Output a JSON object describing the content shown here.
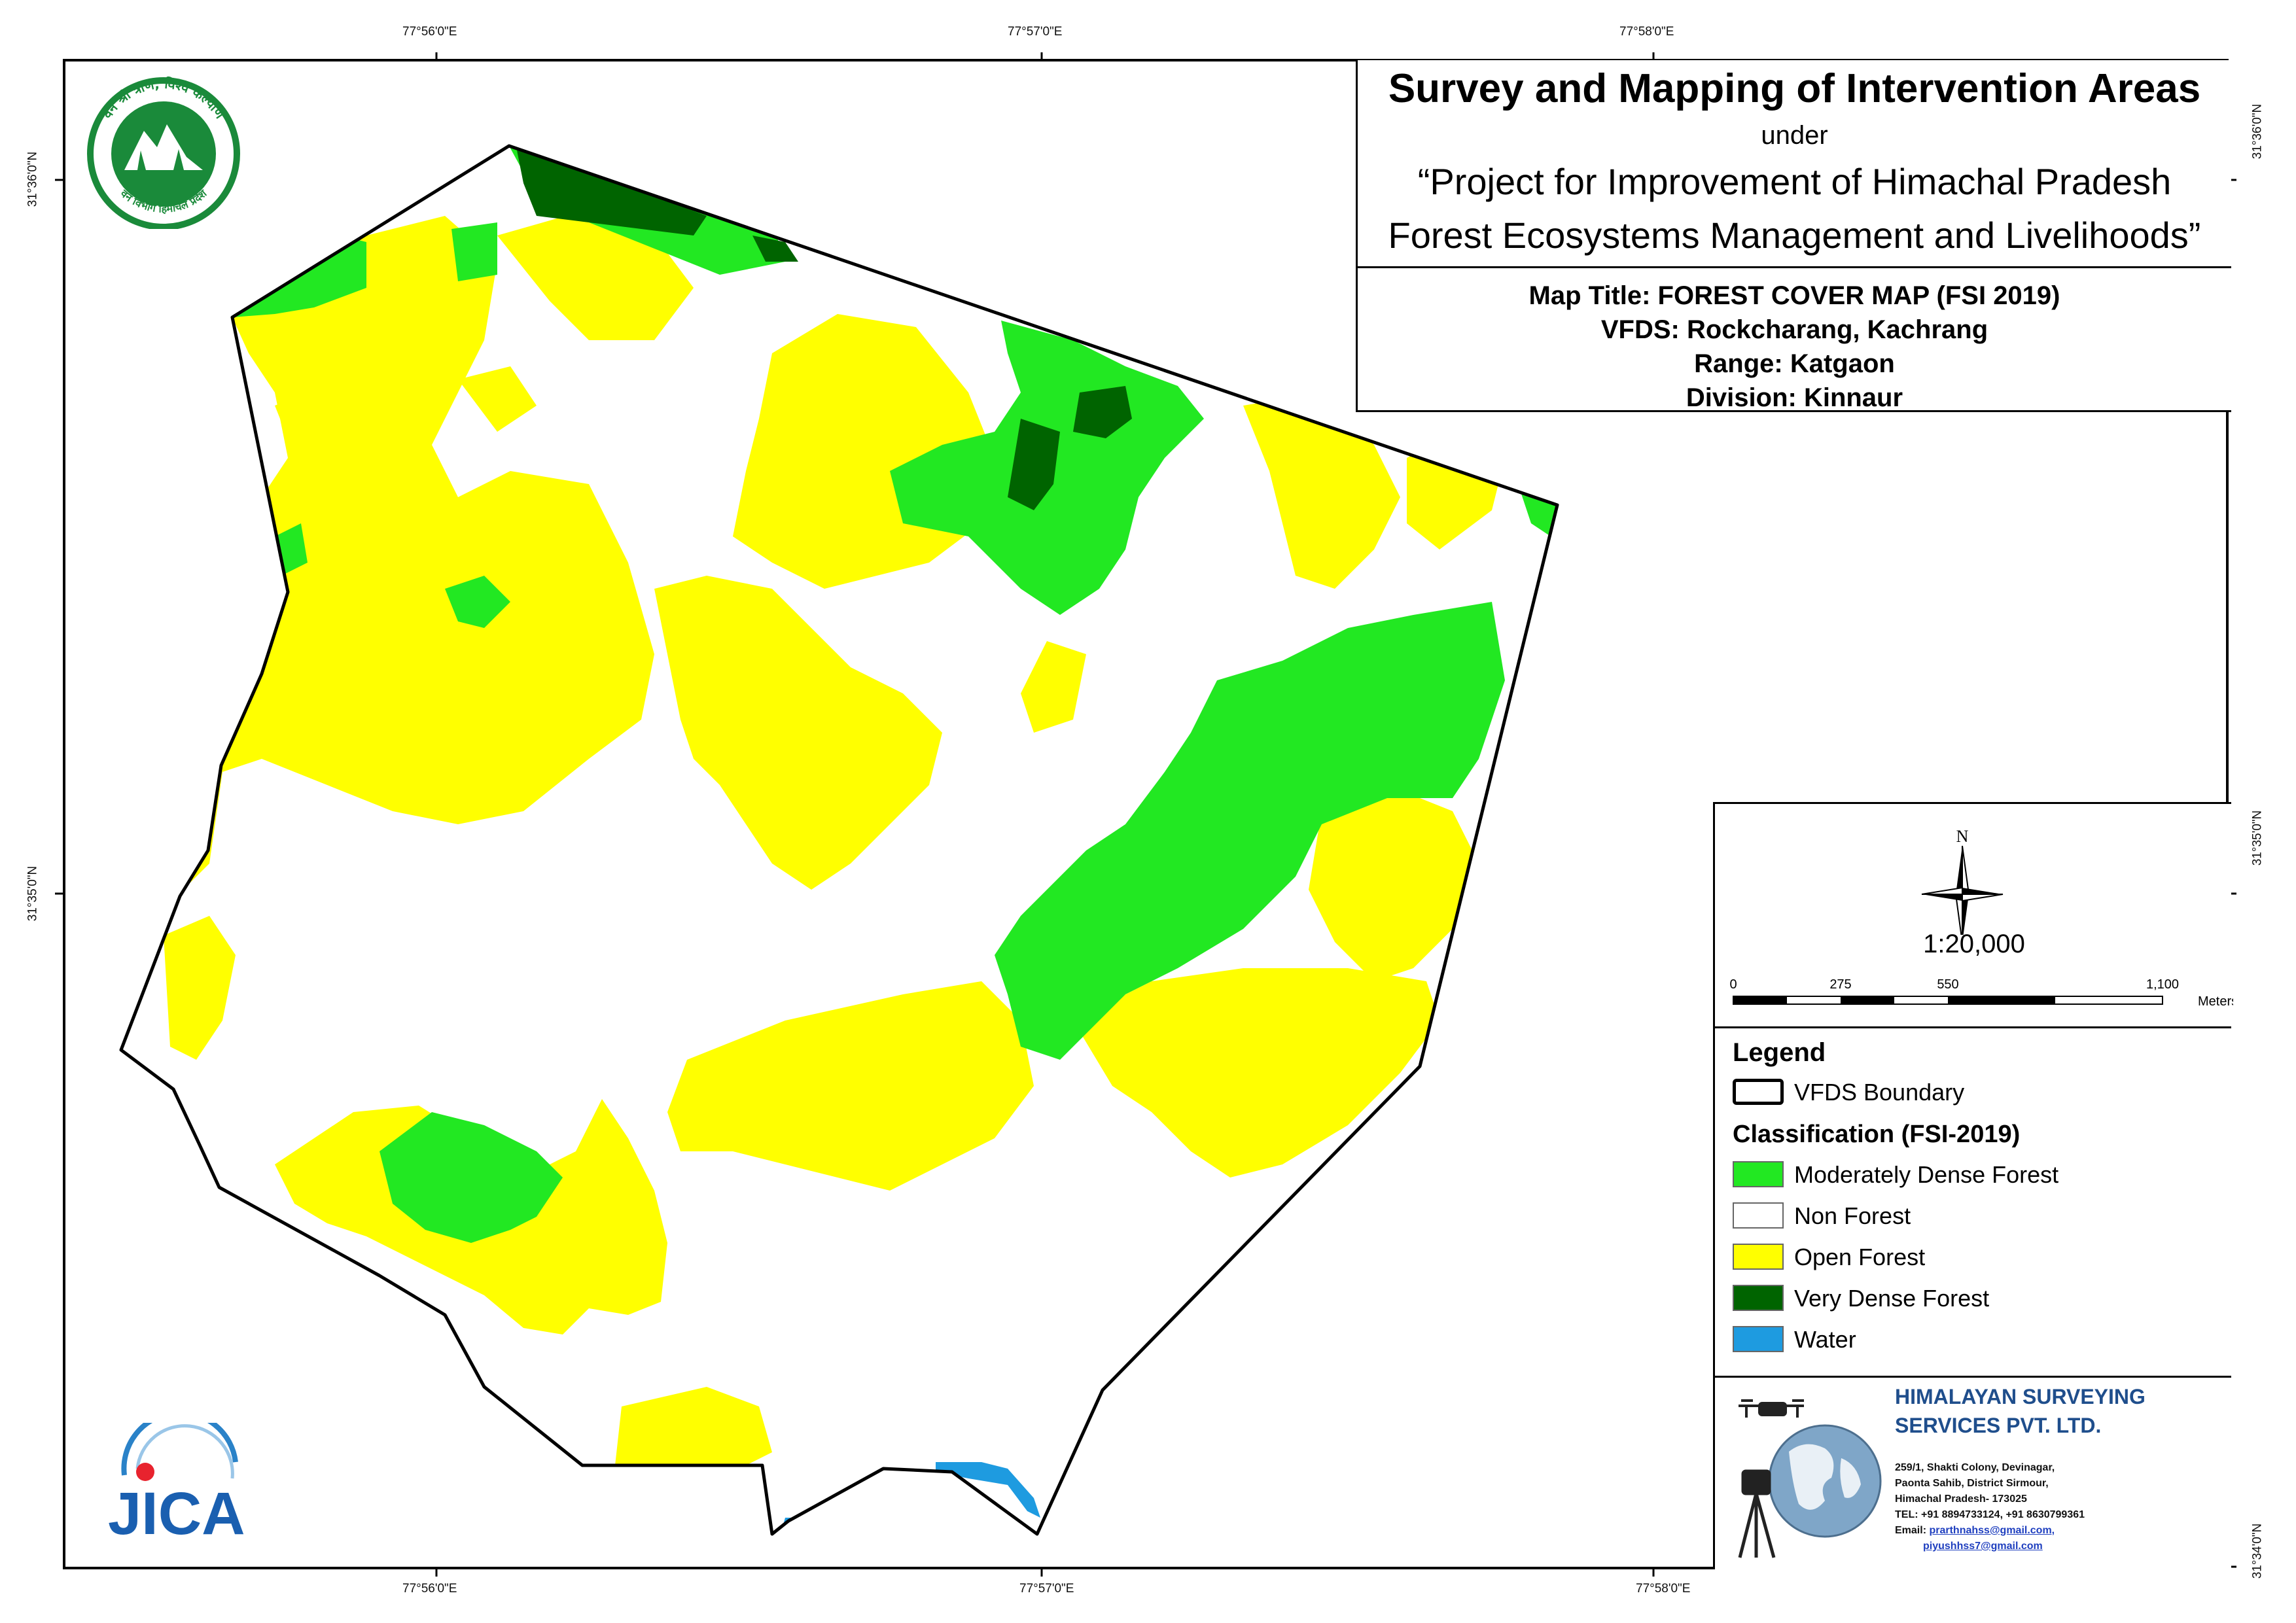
{
  "title": {
    "main": "Survey and Mapping of Intervention Areas",
    "under": "under",
    "project_line1": "“Project for Improvement of Himachal Pradesh",
    "project_line2": "Forest Ecosystems Management and Livelihoods”"
  },
  "map_info": {
    "map_title": "Map Title: FOREST COVER MAP (FSI 2019)",
    "vfds": "VFDS: Rockcharang, Kachrang",
    "range": "Range: Katgaon",
    "division": "Division: Kinnaur"
  },
  "coordinates": {
    "top": [
      "77°56'0\"E",
      "77°57'0\"E",
      "77°58'0\"E"
    ],
    "bottom": [
      "77°56'0\"E",
      "77°57'0\"E",
      "77°58'0\"E"
    ],
    "left": [
      "31°36'0\"N",
      "31°35'0\"N"
    ],
    "right": [
      "31°36'0\"N",
      "31°35'0\"N",
      "31°34'0\"N"
    ]
  },
  "north_arrow": {
    "label": "N"
  },
  "scale": {
    "ratio": "1:20,000",
    "ticks": [
      "0",
      "275",
      "550",
      "1,100"
    ],
    "tick_values": [
      0,
      275,
      550,
      1100
    ],
    "unit": "Meters"
  },
  "legend": {
    "title": "Legend",
    "boundary_label": "VFDS Boundary",
    "classification_title": "Classification (FSI-2019)",
    "classes": [
      {
        "label": "Moderately Dense Forest",
        "color": "#22e822"
      },
      {
        "label": "Non Forest",
        "color": "#ffffff"
      },
      {
        "label": "Open Forest",
        "color": "#ffff00"
      },
      {
        "label": "Very Dense Forest",
        "color": "#006400"
      },
      {
        "label": "Water",
        "color": "#1e9be0"
      }
    ]
  },
  "company": {
    "name_line1": "HIMALAYAN SURVEYING",
    "name_line2": "SERVICES PVT. LTD.",
    "address1": "259/1, Shakti Colony, Devinagar,",
    "address2": "Paonta Sahib, District Sirmour,",
    "address3": "Himachal Pradesh- 173025",
    "tel": "TEL: +91 8894733124, +91 8630799361",
    "email_label": "Email:",
    "email1": "prarthnahss@gmail.com,",
    "email2": "piyushhss7@gmail.com"
  },
  "logos": {
    "forest_dept_top": "वन श्री त्राण, विश्व कल्याण",
    "forest_dept_bottom": "वन विभाग हिमाचल प्रदेश",
    "jica": "JICA"
  }
}
